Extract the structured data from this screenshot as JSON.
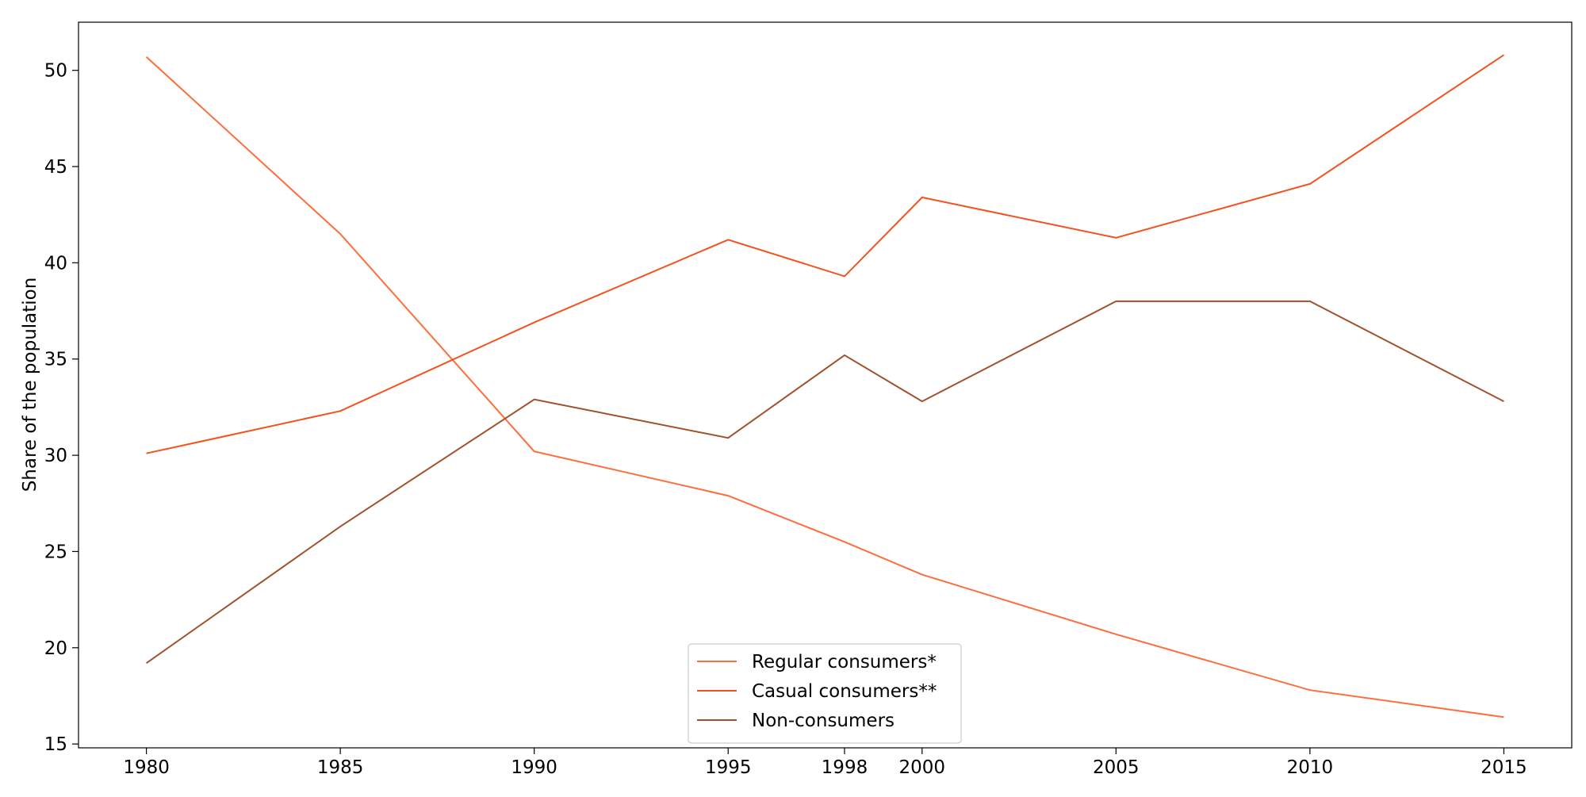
{
  "chart_data": {
    "type": "line",
    "title": "",
    "xlabel": "",
    "ylabel": "Share of the population",
    "x": [
      1980,
      1985,
      1990,
      1995,
      1998,
      2000,
      2005,
      2010,
      2015
    ],
    "x_ticks": [
      1980,
      1985,
      1990,
      1995,
      1998,
      2000,
      2005,
      2010,
      2015
    ],
    "y_ticks": [
      15,
      20,
      25,
      30,
      35,
      40,
      45,
      50
    ],
    "xlim": [
      1978.25,
      2016.75
    ],
    "ylim": [
      14.8,
      52.5
    ],
    "grid": false,
    "legend_position": "bottom-center",
    "series": [
      {
        "name": "Regular consumers*",
        "color": "#ff6d3a",
        "values": [
          50.7,
          41.5,
          30.2,
          27.9,
          25.5,
          23.8,
          20.7,
          17.8,
          16.4
        ]
      },
      {
        "name": "Casual consumers**",
        "color": "#f4511e",
        "values": [
          30.1,
          32.3,
          36.9,
          41.2,
          39.3,
          43.4,
          41.3,
          44.1,
          50.8
        ]
      },
      {
        "name": "Non-consumers",
        "color": "#a0522d",
        "values": [
          19.2,
          26.3,
          32.9,
          30.9,
          35.2,
          32.8,
          38.0,
          38.0,
          32.8
        ]
      }
    ]
  }
}
